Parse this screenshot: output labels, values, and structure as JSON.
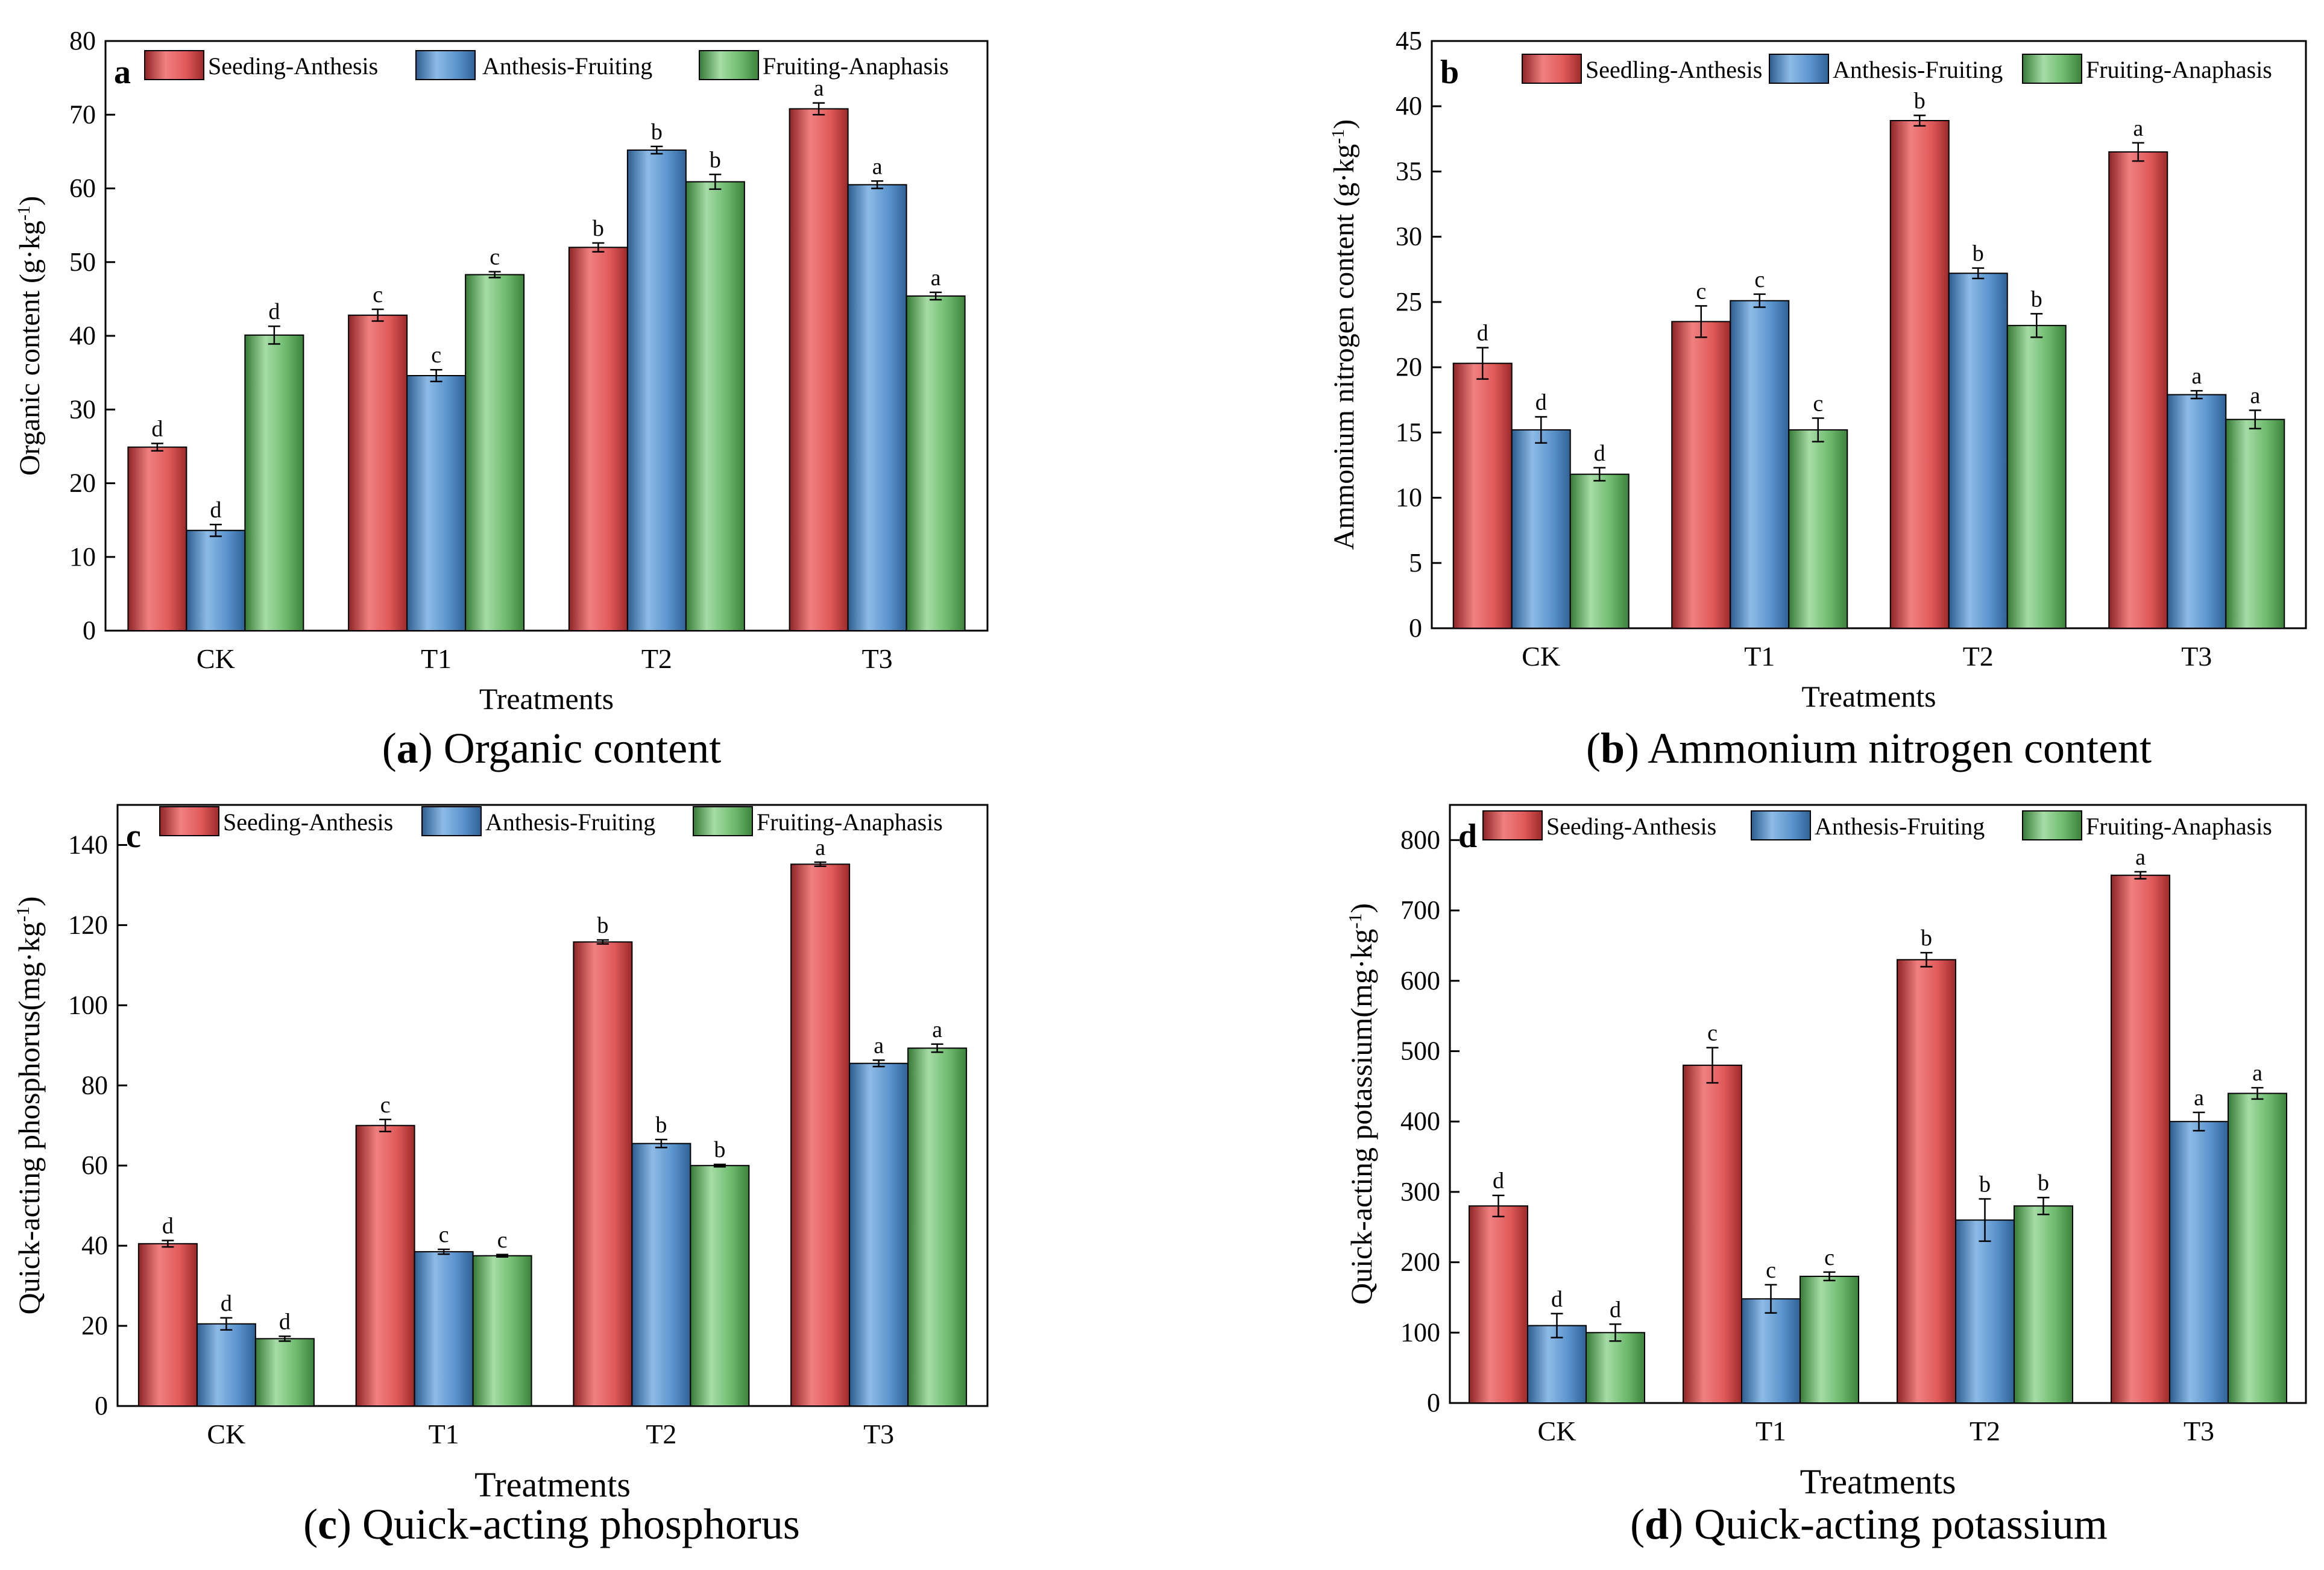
{
  "colors": {
    "red": "#e05a5a",
    "blue": "#5a93cc",
    "green": "#6dba6d"
  },
  "captions": [
    {
      "letter": "a",
      "text": " Organic content"
    },
    {
      "letter": "b",
      "text": " Ammonium nitrogen content"
    },
    {
      "letter": "c",
      "text": " Quick-acting phosphorus"
    },
    {
      "letter": "d",
      "text": " Quick-acting potassium"
    }
  ],
  "chart_data": [
    {
      "type": "bar",
      "panel_label": "a",
      "caption_letter": "(a)",
      "caption_text": "Organic content",
      "xlabel": "Treatments",
      "ylabel": "Organic content (g·kg⁻¹)",
      "categories": [
        "CK",
        "T1",
        "T2",
        "T3"
      ],
      "ylim": [
        0,
        80
      ],
      "yticks": [
        0,
        10,
        20,
        30,
        40,
        50,
        60,
        70,
        80
      ],
      "legend": "top",
      "series": [
        {
          "name": "Seeding-Anthesis",
          "color": "red",
          "values": [
            24.9,
            42.8,
            52.0,
            70.8
          ],
          "errors": [
            0.5,
            0.8,
            0.6,
            0.8
          ],
          "labels": [
            "d",
            "c",
            "b",
            "a"
          ]
        },
        {
          "name": "Anthesis-Fruiting",
          "color": "blue",
          "values": [
            13.6,
            34.6,
            65.2,
            60.5
          ],
          "errors": [
            0.8,
            0.8,
            0.5,
            0.5
          ],
          "labels": [
            "d",
            "c",
            "b",
            "a"
          ]
        },
        {
          "name": "Fruiting-Anaphasis",
          "color": "green",
          "values": [
            40.1,
            48.3,
            60.9,
            45.4
          ],
          "errors": [
            1.2,
            0.4,
            1.0,
            0.5
          ],
          "labels": [
            "d",
            "c",
            "b",
            "a"
          ]
        }
      ]
    },
    {
      "type": "bar",
      "panel_label": "b",
      "caption_letter": "(b)",
      "caption_text": "Ammonium nitrogen content",
      "xlabel": "Treatments",
      "ylabel": "Ammonium nitrogen content (g·kg⁻¹)",
      "categories": [
        "CK",
        "T1",
        "T2",
        "T3"
      ],
      "ylim": [
        0,
        45
      ],
      "yticks": [
        0,
        5,
        10,
        15,
        20,
        25,
        30,
        35,
        40,
        45
      ],
      "legend": "top",
      "series": [
        {
          "name": "Seedling-Anthesis",
          "color": "red",
          "values": [
            20.3,
            23.5,
            38.9,
            36.5
          ],
          "errors": [
            1.2,
            1.2,
            0.4,
            0.7
          ],
          "labels": [
            "d",
            "c",
            "b",
            "a"
          ]
        },
        {
          "name": "Anthesis-Fruiting",
          "color": "blue",
          "values": [
            15.2,
            25.1,
            27.2,
            17.9
          ],
          "errors": [
            1.0,
            0.5,
            0.4,
            0.3
          ],
          "labels": [
            "d",
            "c",
            "b",
            "a"
          ]
        },
        {
          "name": "Fruiting-Anaphasis",
          "color": "green",
          "values": [
            11.8,
            15.2,
            23.2,
            16.0
          ],
          "errors": [
            0.5,
            0.9,
            0.9,
            0.7
          ],
          "labels": [
            "d",
            "c",
            "b",
            "a"
          ]
        }
      ]
    },
    {
      "type": "bar",
      "panel_label": "c",
      "caption_letter": "(c)",
      "caption_text": "Quick-acting phosphorus",
      "xlabel": "Treatments",
      "ylabel": "Quick-acting phosphorus(mg·kg⁻¹)",
      "categories": [
        "CK",
        "T1",
        "T2",
        "T3"
      ],
      "ylim": [
        0,
        150
      ],
      "yticks": [
        0,
        20,
        40,
        60,
        80,
        100,
        120,
        140
      ],
      "legend": "top",
      "series": [
        {
          "name": "Seeding-Anthesis",
          "color": "red",
          "values": [
            40.5,
            70.0,
            115.8,
            135.2
          ],
          "errors": [
            0.8,
            1.5,
            0.5,
            0.5
          ],
          "labels": [
            "d",
            "c",
            "b",
            "a"
          ]
        },
        {
          "name": "Anthesis-Fruiting",
          "color": "blue",
          "values": [
            20.5,
            38.5,
            65.5,
            85.5
          ],
          "errors": [
            1.5,
            0.6,
            1.0,
            0.8
          ],
          "labels": [
            "d",
            "c",
            "b",
            "a"
          ]
        },
        {
          "name": "Fruiting-Anaphasis",
          "color": "green",
          "values": [
            16.8,
            37.5,
            60.0,
            89.3
          ],
          "errors": [
            0.6,
            0.3,
            0.3,
            1.0
          ],
          "labels": [
            "d",
            "c",
            "b",
            "a"
          ]
        }
      ]
    },
    {
      "type": "bar",
      "panel_label": "d",
      "caption_letter": "(d)",
      "caption_text": "Quick-acting potassium",
      "xlabel": "Treatments",
      "ylabel": "Quick-acting potassium(mg·kg⁻¹)",
      "categories": [
        "CK",
        "T1",
        "T2",
        "T3"
      ],
      "ylim": [
        0,
        850
      ],
      "yticks": [
        0,
        100,
        200,
        300,
        400,
        500,
        600,
        700,
        800
      ],
      "legend": "top",
      "series": [
        {
          "name": "Seeding-Anthesis",
          "color": "red",
          "values": [
            280,
            480,
            630,
            750
          ],
          "errors": [
            15,
            25,
            10,
            5
          ],
          "labels": [
            "d",
            "c",
            "b",
            "a"
          ]
        },
        {
          "name": "Anthesis-Fruiting",
          "color": "blue",
          "values": [
            110,
            148,
            260,
            400
          ],
          "errors": [
            17,
            20,
            30,
            13
          ],
          "labels": [
            "d",
            "c",
            "b",
            "a"
          ]
        },
        {
          "name": "Fruiting-Anaphasis",
          "color": "green",
          "values": [
            100,
            180,
            280,
            440
          ],
          "errors": [
            12,
            6,
            12,
            8
          ],
          "labels": [
            "d",
            "c",
            "b",
            "a"
          ]
        }
      ]
    }
  ]
}
